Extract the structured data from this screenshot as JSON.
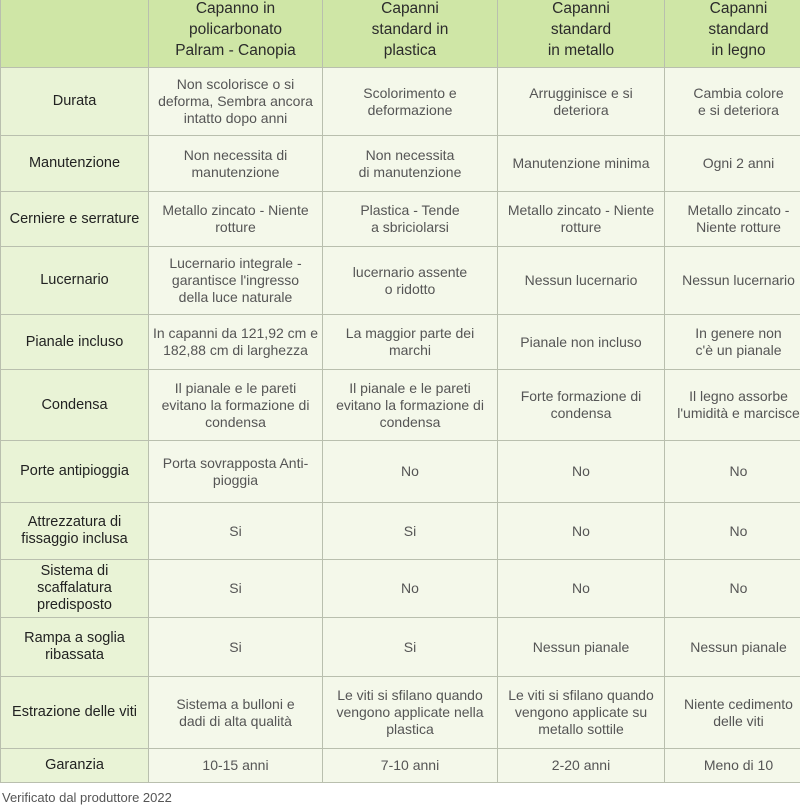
{
  "table": {
    "columns": [
      "Capanno in\npolicarbonato\nPalram - Canopia",
      "Capanni\nstandard in\nplastica",
      "Capanni\nstandard\nin metallo",
      "Capanni\nstandard\nin legno"
    ],
    "rows": [
      {
        "label": "Durata",
        "cells": [
          "Non scolorisce o si\ndeforma, Sembra ancora\nintatto dopo anni",
          "Scolorimento e\ndeformazione",
          "Arrugginisce e si\ndeteriora",
          "Cambia colore\ne si deteriora"
        ]
      },
      {
        "label": "Manutenzione",
        "cells": [
          "Non necessita di\nmanutenzione",
          "Non necessita\ndi manutenzione",
          "Manutenzione minima",
          "Ogni 2 anni"
        ]
      },
      {
        "label": "Cerniere e serrature",
        "cells": [
          "Metallo zincato - Niente\nrotture",
          "Plastica - Tende\na sbriciolarsi",
          "Metallo zincato - Niente\nrotture",
          "Metallo zincato -\nNiente rotture"
        ]
      },
      {
        "label": "Lucernario",
        "cells": [
          "Lucernario integrale -\ngarantisce l'ingresso\ndella luce naturale",
          "lucernario assente\no ridotto",
          "Nessun lucernario",
          "Nessun lucernario"
        ]
      },
      {
        "label": "Pianale incluso",
        "cells": [
          "In capanni da 121,92 cm e\n182,88 cm di larghezza",
          "La maggior parte dei\nmarchi",
          "Pianale non incluso",
          "In genere non\nc'è un pianale"
        ]
      },
      {
        "label": "Condensa",
        "cells": [
          "Il pianale e le pareti\nevitano la formazione di\ncondensa",
          "Il pianale e le pareti\nevitano la formazione di\ncondensa",
          "Forte formazione di\ncondensa",
          "Il legno assorbe\nl'umidità e marcisce"
        ]
      },
      {
        "label": "Porte antipioggia",
        "cells": [
          "Porta sovrapposta Anti-\npioggia",
          "No",
          "No",
          "No"
        ]
      },
      {
        "label": "Attrezzatura di\nfissaggio inclusa",
        "cells": [
          "Si",
          "Si",
          "No",
          "No"
        ]
      },
      {
        "label": "Sistema di scaffalatura\npredisposto",
        "cells": [
          "Si",
          "No",
          "No",
          "No"
        ]
      },
      {
        "label": "Rampa a soglia\nribassata",
        "cells": [
          "Si",
          "Si",
          "Nessun pianale",
          "Nessun pianale"
        ]
      },
      {
        "label": "Estrazione delle viti",
        "cells": [
          "Sistema a bulloni e\ndadi di alta qualità",
          "Le viti si sfilano quando\nvengono applicate nella\nplastica",
          "Le viti si sfilano quando\nvengono applicate su\nmetallo sottile",
          "Niente cedimento\ndelle viti"
        ]
      },
      {
        "label": "Garanzia",
        "cells": [
          "10-15 anni",
          "7-10 anni",
          "2-20 anni",
          "Meno di 10"
        ]
      }
    ],
    "footer": "Verificato dal produttore 2022"
  }
}
